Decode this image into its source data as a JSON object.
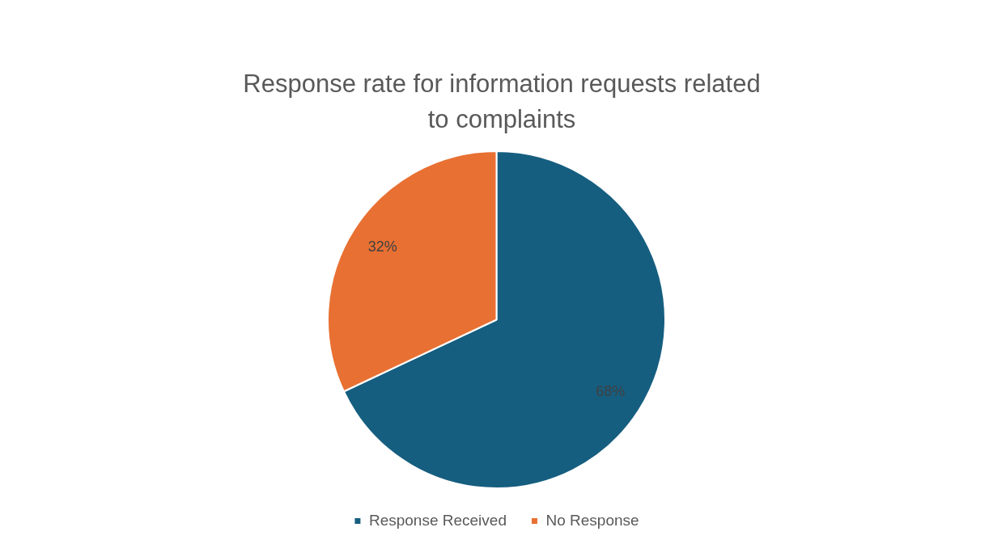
{
  "chart_data": {
    "type": "pie",
    "title": "Response rate for information requests related to complaints",
    "categories": [
      "Response Received",
      "No Response"
    ],
    "values": [
      68,
      32
    ],
    "colors": [
      "#165e80",
      "#e87032"
    ],
    "value_labels": [
      "68%",
      "32%"
    ],
    "legend": "bottom"
  }
}
